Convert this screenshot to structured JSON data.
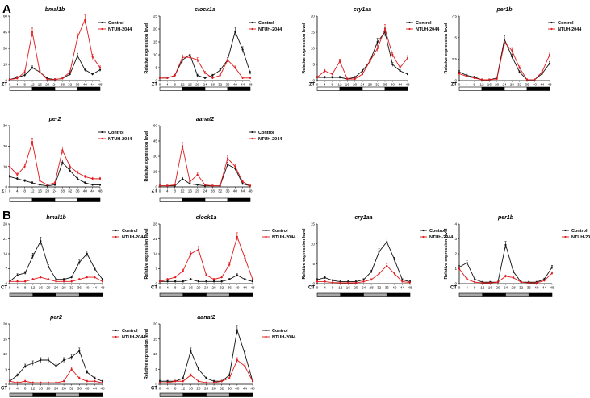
{
  "figure": {
    "panel_labels": [
      "A",
      "B"
    ],
    "x_axis_prefixes": {
      "A": "ZT",
      "B": "CT"
    }
  },
  "colors": {
    "control": "#111111",
    "ntuh": "#e0191b",
    "bar_dark": "#000000",
    "bar_light_A": "#ffffff",
    "bar_light_B": "#a8a8a8"
  },
  "chart_data": [
    {
      "panel": "A",
      "type": "line",
      "title": "bmal1b",
      "xprefix": "ZT",
      "ylabel": "Relative expression level",
      "x": [
        0,
        4,
        8,
        12,
        16,
        20,
        24,
        28,
        32,
        36,
        40,
        44,
        48
      ],
      "ylim": [
        0,
        60
      ],
      "yticks": [
        0,
        15,
        30,
        45,
        60
      ],
      "legend": [
        "Control",
        "NTUH-2044"
      ],
      "lighting": [
        "L",
        "D",
        "L",
        "D"
      ],
      "series": [
        {
          "name": "Control",
          "values": [
            1,
            3,
            5,
            12,
            8,
            2,
            1,
            2,
            6,
            23,
            10,
            6,
            10
          ]
        },
        {
          "name": "NTUH-2044",
          "values": [
            1,
            2,
            8,
            45,
            8,
            1,
            1,
            2,
            8,
            40,
            57,
            22,
            12
          ]
        }
      ]
    },
    {
      "panel": "A",
      "type": "line",
      "title": "clock1a",
      "xprefix": "ZT",
      "ylabel": "Relative expression level",
      "x": [
        0,
        4,
        8,
        12,
        16,
        20,
        24,
        28,
        32,
        36,
        40,
        44,
        48
      ],
      "ylim": [
        0,
        25
      ],
      "yticks": [
        0,
        5,
        10,
        15,
        20,
        25
      ],
      "legend": [
        "Control",
        "NTUH-2044"
      ],
      "lighting": [
        "L",
        "D",
        "L",
        "D"
      ],
      "series": [
        {
          "name": "Control",
          "values": [
            1,
            1,
            2,
            8,
            10,
            2,
            1,
            2,
            4,
            8,
            19,
            12,
            3
          ]
        },
        {
          "name": "NTUH-2044",
          "values": [
            1,
            1,
            2,
            9,
            9,
            8,
            3,
            1,
            2,
            8,
            5,
            1,
            1
          ]
        }
      ]
    },
    {
      "panel": "A",
      "type": "line",
      "title": "cry1aa",
      "xprefix": "ZT",
      "ylabel": "Relative expression level",
      "x": [
        0,
        4,
        8,
        12,
        16,
        20,
        24,
        28,
        32,
        36,
        40,
        44,
        48
      ],
      "ylim": [
        0,
        20
      ],
      "yticks": [
        0,
        5,
        10,
        15,
        20
      ],
      "legend": [
        "Control",
        "NTUH-2044"
      ],
      "lighting": [
        "L",
        "D",
        "L",
        "D"
      ],
      "series": [
        {
          "name": "Control",
          "values": [
            1,
            1,
            1,
            1,
            0.5,
            1,
            3,
            6,
            12,
            15,
            5,
            3,
            2
          ]
        },
        {
          "name": "NTUH-2044",
          "values": [
            1,
            3,
            2,
            6,
            0.5,
            0.5,
            2,
            6,
            10,
            16,
            8,
            4,
            7
          ]
        }
      ]
    },
    {
      "panel": "A",
      "type": "line",
      "title": "per1b",
      "xprefix": "ZT",
      "ylabel": "Relative expression level",
      "x": [
        0,
        4,
        8,
        12,
        16,
        20,
        24,
        28,
        32,
        36,
        40,
        44,
        48
      ],
      "ylim": [
        0,
        7.5
      ],
      "yticks": [
        0,
        2.5,
        5.0,
        7.5
      ],
      "legend": [
        "Control",
        "NTUH-2044"
      ],
      "lighting": [
        "L",
        "D",
        "L",
        "D"
      ],
      "series": [
        {
          "name": "Control",
          "values": [
            1,
            0.6,
            0.4,
            0.1,
            0.1,
            0.3,
            4.8,
            2.8,
            1,
            0.1,
            0.1,
            0.8,
            2
          ]
        },
        {
          "name": "NTUH-2044",
          "values": [
            0.8,
            0.5,
            0.3,
            0.1,
            0.1,
            0.2,
            4.4,
            3.5,
            1.5,
            0.1,
            0.1,
            1,
            3
          ]
        }
      ]
    },
    {
      "panel": "A",
      "type": "line",
      "title": "per2",
      "xprefix": "ZT",
      "ylabel": "Relative expression level",
      "x": [
        0,
        4,
        8,
        12,
        16,
        20,
        24,
        28,
        32,
        36,
        40,
        44,
        48
      ],
      "ylim": [
        0,
        30
      ],
      "yticks": [
        0,
        10,
        20,
        30
      ],
      "legend": [
        "Control",
        "NTUH-2044"
      ],
      "lighting": [
        "L",
        "D",
        "L",
        "D"
      ],
      "series": [
        {
          "name": "Control",
          "values": [
            5,
            4,
            3,
            2,
            1,
            0.5,
            1,
            12,
            8,
            4,
            2,
            1,
            1
          ]
        },
        {
          "name": "NTUH-2044",
          "values": [
            10,
            6,
            10,
            22,
            3,
            1,
            2,
            18,
            10,
            7,
            5,
            4,
            4
          ]
        }
      ]
    },
    {
      "panel": "A",
      "type": "line",
      "title": "aanat2",
      "xprefix": "ZT",
      "ylabel": "Relative expression level",
      "x": [
        0,
        4,
        8,
        12,
        16,
        20,
        24,
        28,
        32,
        36,
        40,
        44,
        48
      ],
      "ylim": [
        0,
        60
      ],
      "yticks": [
        0,
        15,
        30,
        45,
        60
      ],
      "legend": [
        "Control",
        "NTUH-2044"
      ],
      "lighting": [
        "L",
        "D",
        "L",
        "D"
      ],
      "series": [
        {
          "name": "Control",
          "values": [
            1,
            1,
            1,
            8,
            3,
            2,
            1,
            1,
            1,
            22,
            18,
            3,
            1
          ]
        },
        {
          "name": "NTUH-2044",
          "values": [
            1,
            1,
            2,
            40,
            5,
            12,
            2,
            1,
            1,
            28,
            20,
            5,
            1
          ]
        }
      ]
    },
    {
      "panel": "B",
      "type": "line",
      "title": "bmal1b",
      "xprefix": "CT",
      "ylabel": "Relative expression level",
      "x": [
        0,
        4,
        8,
        12,
        16,
        20,
        24,
        28,
        32,
        36,
        40,
        44,
        48
      ],
      "ylim": [
        0,
        28
      ],
      "yticks": [
        0,
        7,
        14,
        21,
        28
      ],
      "legend": [
        "Control",
        "NTUH-2044"
      ],
      "lighting": [
        "SD",
        "D",
        "SD",
        "D"
      ],
      "series": [
        {
          "name": "Control",
          "values": [
            1,
            4,
            5,
            13,
            20,
            8,
            2,
            2,
            3,
            10,
            14,
            7,
            2
          ]
        },
        {
          "name": "NTUH-2044",
          "values": [
            1,
            1,
            1,
            2,
            3,
            2,
            1,
            1,
            1,
            2,
            3,
            3,
            1
          ]
        }
      ]
    },
    {
      "panel": "B",
      "type": "line",
      "title": "clock1a",
      "xprefix": "CT",
      "ylabel": "Relative expression level",
      "x": [
        0,
        4,
        8,
        12,
        16,
        20,
        24,
        28,
        32,
        36,
        40,
        44,
        48
      ],
      "ylim": [
        0,
        28
      ],
      "yticks": [
        0,
        7,
        14,
        21,
        28
      ],
      "legend": [
        "Control",
        "NTUH-2044"
      ],
      "lighting": [
        "SD",
        "D",
        "SD",
        "D"
      ],
      "series": [
        {
          "name": "Control",
          "values": [
            1,
            1,
            1,
            1,
            2,
            1,
            1,
            1,
            1,
            2,
            4,
            2,
            1
          ]
        },
        {
          "name": "NTUH-2044",
          "values": [
            1,
            2,
            3,
            6,
            14,
            16,
            4,
            2,
            3,
            9,
            22,
            12,
            2
          ]
        }
      ]
    },
    {
      "panel": "B",
      "type": "line",
      "title": "cry1aa",
      "xprefix": "CT",
      "ylabel": "Relative expression level",
      "x": [
        0,
        4,
        8,
        12,
        16,
        20,
        24,
        28,
        32,
        36,
        40,
        44,
        48
      ],
      "ylim": [
        0,
        15
      ],
      "yticks": [
        0,
        5,
        10,
        15
      ],
      "legend": [
        "Control",
        "NTUH-2044"
      ],
      "lighting": [
        "SD",
        "D",
        "SD",
        "D"
      ],
      "series": [
        {
          "name": "Control",
          "values": [
            1,
            1.5,
            0.8,
            0.5,
            0.5,
            0.5,
            1,
            3,
            8,
            10.5,
            6,
            1,
            0.5
          ]
        },
        {
          "name": "NTUH-2044",
          "values": [
            0.5,
            0.5,
            0.3,
            0.2,
            0.2,
            0.2,
            0.5,
            1,
            2.5,
            4.5,
            2.5,
            0.5,
            0.3
          ]
        }
      ]
    },
    {
      "panel": "B",
      "type": "line",
      "title": "per1b",
      "xprefix": "CT",
      "ylabel": "Relative expression level",
      "x": [
        0,
        4,
        8,
        12,
        16,
        20,
        24,
        28,
        32,
        36,
        40,
        44,
        48
      ],
      "ylim": [
        0,
        4
      ],
      "yticks": [
        0,
        1,
        2,
        3,
        4
      ],
      "legend": [
        "Control",
        "NTUH-2044"
      ],
      "lighting": [
        "SD",
        "D",
        "SD",
        "D"
      ],
      "series": [
        {
          "name": "Control",
          "values": [
            1.1,
            1.4,
            0.3,
            0.1,
            0.1,
            0.1,
            2.6,
            0.8,
            0.1,
            0.1,
            0.1,
            0.3,
            1.1
          ]
        },
        {
          "name": "NTUH-2044",
          "values": [
            1,
            0.3,
            0.1,
            0.05,
            0.05,
            0.1,
            0.5,
            0.4,
            0.1,
            0.05,
            0.05,
            0.2,
            0.7
          ]
        }
      ]
    },
    {
      "panel": "B",
      "type": "line",
      "title": "per2",
      "xprefix": "CT",
      "ylabel": "Relative expression level",
      "x": [
        0,
        4,
        8,
        12,
        16,
        20,
        24,
        28,
        32,
        36,
        40,
        44,
        48
      ],
      "ylim": [
        0,
        20
      ],
      "yticks": [
        0,
        5,
        10,
        15,
        20
      ],
      "legend": [
        "Control",
        "NTUH-2044"
      ],
      "lighting": [
        "SD",
        "D",
        "SD",
        "D"
      ],
      "series": [
        {
          "name": "Control",
          "values": [
            1,
            3,
            6,
            7,
            8,
            8,
            6,
            8,
            9,
            11,
            4,
            2,
            1
          ]
        },
        {
          "name": "NTUH-2044",
          "values": [
            1,
            0.5,
            1,
            0.5,
            0.5,
            0.5,
            0.5,
            1,
            5,
            2,
            1,
            1,
            0.5
          ]
        }
      ]
    },
    {
      "panel": "B",
      "type": "line",
      "title": "aanat2",
      "xprefix": "CT",
      "ylabel": "Relative expression level",
      "x": [
        0,
        4,
        8,
        12,
        16,
        20,
        24,
        28,
        32,
        36,
        40,
        44,
        48
      ],
      "ylim": [
        0,
        20
      ],
      "yticks": [
        0,
        5,
        10,
        15,
        20
      ],
      "legend": [
        "Control",
        "NTUH-2044"
      ],
      "lighting": [
        "SD",
        "D",
        "SD",
        "D"
      ],
      "series": [
        {
          "name": "Control",
          "values": [
            1,
            1,
            1,
            2,
            11,
            5,
            2,
            1,
            1,
            3,
            18,
            10,
            1
          ]
        },
        {
          "name": "NTUH-2044",
          "values": [
            0.5,
            0.5,
            1,
            1,
            3,
            1,
            0.5,
            0.5,
            1,
            2,
            8,
            6,
            1
          ]
        }
      ]
    }
  ]
}
